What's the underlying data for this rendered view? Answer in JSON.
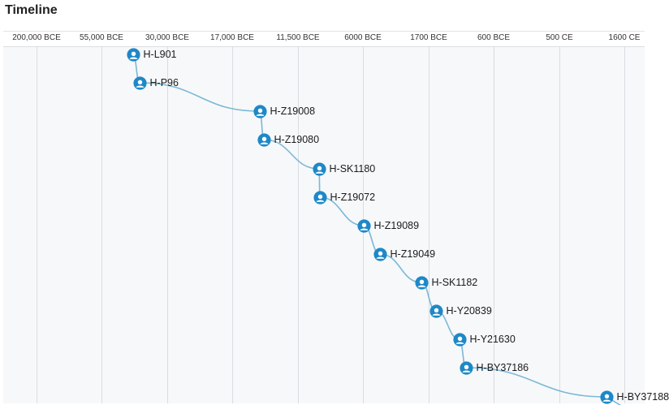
{
  "title": "Timeline",
  "axis": {
    "ticks": [
      "200,000 BCE",
      "55,000 BCE",
      "30,000 BCE",
      "17,000 BCE",
      "11,500 BCE",
      "6000 BCE",
      "1700 BCE",
      "600 BCE",
      "500 CE",
      "1600 CE"
    ]
  },
  "nodes": [
    {
      "label": "H-L901"
    },
    {
      "label": "H-P96"
    },
    {
      "label": "H-Z19008"
    },
    {
      "label": "H-Z19080"
    },
    {
      "label": "H-SK1180"
    },
    {
      "label": "H-Z19072"
    },
    {
      "label": "H-Z19089"
    },
    {
      "label": "H-Z19049"
    },
    {
      "label": "H-SK1182"
    },
    {
      "label": "H-Y20839"
    },
    {
      "label": "H-Y21630"
    },
    {
      "label": "H-BY37186"
    },
    {
      "label": "H-BY37188"
    }
  ],
  "colors": {
    "node": "#1e88c7",
    "link": "#7ab8d6"
  },
  "icons": {
    "node": "person-icon"
  }
}
